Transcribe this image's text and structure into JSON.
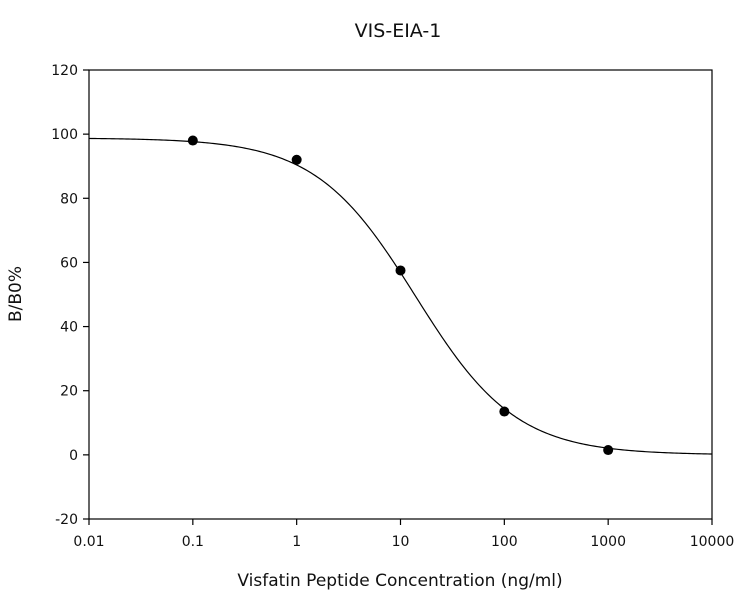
{
  "chart_data": {
    "type": "scatter",
    "title": "VIS-EIA-1",
    "xlabel": "Visfatin Peptide Concentration (ng/ml)",
    "ylabel": "B/B0%",
    "x_scale": "log",
    "xlim": [
      0.01,
      10000
    ],
    "ylim": [
      -20,
      120
    ],
    "x_ticks": [
      "0.01",
      "0.1",
      "1",
      "10",
      "100",
      "1000",
      "10000"
    ],
    "y_ticks": [
      "-20",
      "0",
      "20",
      "40",
      "60",
      "80",
      "100",
      "120"
    ],
    "grid": false,
    "legend": "none",
    "series": [
      {
        "points": [
          {
            "x": 0.1,
            "y": 98
          },
          {
            "x": 1,
            "y": 92
          },
          {
            "x": 10,
            "y": 57.5
          },
          {
            "x": 100,
            "y": 13.5
          },
          {
            "x": 1000,
            "y": 1.5
          }
        ]
      }
    ],
    "fit_curve": {
      "type": "four-parameter logistic",
      "top": 98.8,
      "bottom": 0,
      "ec50": 14,
      "hill": 0.9,
      "x_range": [
        0.01,
        10000
      ]
    }
  }
}
